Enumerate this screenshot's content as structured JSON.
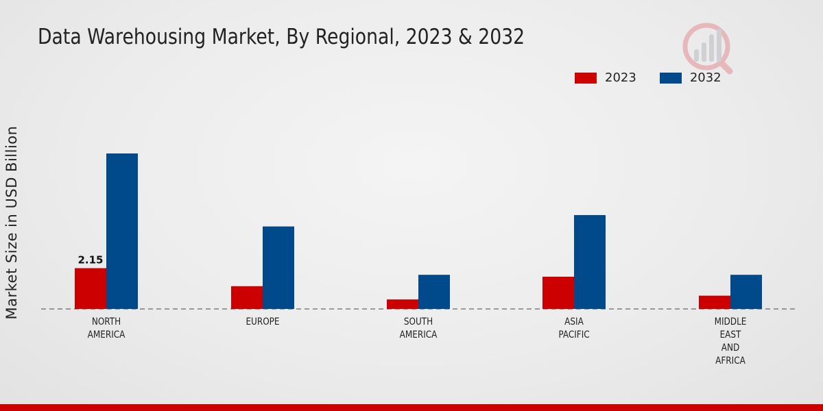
{
  "chart_data": {
    "type": "bar",
    "title": "Data Warehousing Market, By Regional, 2023 & 2032",
    "ylabel": "Market Size in USD Billion",
    "xlabel": "",
    "categories": [
      [
        "NORTH",
        "AMERICA"
      ],
      [
        "EUROPE"
      ],
      [
        "SOUTH",
        "AMERICA"
      ],
      [
        "ASIA",
        "PACIFIC"
      ],
      [
        "MIDDLE",
        "EAST",
        "AND",
        "AFRICA"
      ]
    ],
    "series": [
      {
        "name": "2023",
        "color": "#cc0000",
        "values": [
          2.15,
          1.2,
          0.5,
          1.7,
          0.7
        ]
      },
      {
        "name": "2032",
        "color": "#004a8b",
        "values": [
          8.2,
          4.35,
          1.8,
          4.95,
          1.8
        ]
      }
    ],
    "data_labels": [
      {
        "series": 0,
        "index": 0,
        "text": "2.15"
      }
    ],
    "ylim": [
      0,
      12.5
    ],
    "grid": false,
    "legend_position": "top-right"
  }
}
